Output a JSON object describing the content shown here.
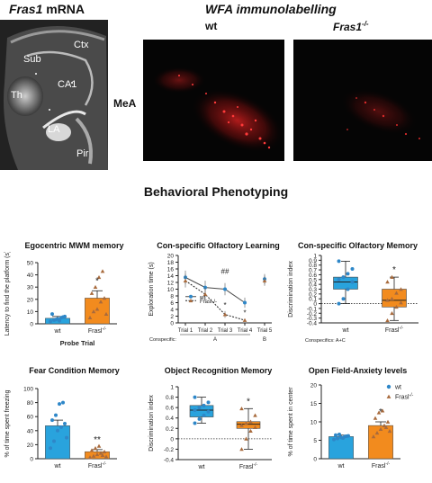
{
  "figure": {
    "panel_a": {
      "gene": "Fras1",
      "suffix": " mRNA",
      "labels": [
        "Ctx",
        "Sub",
        "CA1",
        "Th",
        "LA",
        "Pir"
      ]
    },
    "panel_b": {
      "title": "WFA immunolabelling",
      "col_wt": "wt",
      "col_ko_gene": "Fras1",
      "col_ko_sup": "-/-",
      "row_label": "MeA"
    },
    "section_title": "Behavioral Phenotyping",
    "colors": {
      "wt": "#29a3dd",
      "ko": "#f28b1e",
      "wt_marker": "#2e87c8",
      "ko_marker": "#a86a3c"
    }
  },
  "chart_data": [
    {
      "id": "mwm",
      "type": "bar",
      "title": "Egocentric MWM memory",
      "ylabel": "Latency to find the platform (s)",
      "xlabel": "Probe Trial",
      "ylim": [
        0,
        50
      ],
      "yticks": [
        0,
        10,
        20,
        30,
        40,
        50
      ],
      "categories": [
        "wt",
        "Frasl-/-"
      ],
      "values": [
        4.5,
        21
      ],
      "errors": [
        1.5,
        6
      ],
      "significance": [
        "",
        "*"
      ],
      "points": [
        [
          2,
          3,
          4,
          5,
          6,
          8,
          3.5,
          2.5,
          5.5
        ],
        [
          5,
          10,
          12,
          18,
          21,
          25,
          30,
          38,
          43,
          8
        ]
      ]
    },
    {
      "id": "olf_learning",
      "type": "line",
      "title": "Con-specific Olfactory Learning",
      "ylabel": "Exploration time (s)",
      "ylim": [
        0,
        20
      ],
      "yticks": [
        0,
        2,
        4,
        6,
        8,
        10,
        12,
        14,
        16,
        18,
        20
      ],
      "x": [
        "Trial 1",
        "Trial 2",
        "Trial 3",
        "Trial 4",
        "Trial 5"
      ],
      "x_group_prefix": "Conspecific:",
      "x_groups": [
        "A",
        "B"
      ],
      "legend": [
        "wt",
        "Frasl-/-"
      ],
      "series": [
        {
          "name": "wt",
          "values": [
            13.5,
            10.5,
            10,
            6,
            13
          ],
          "errors": [
            2,
            2,
            1.8,
            1.5,
            1.5
          ]
        },
        {
          "name": "Frasl-/-",
          "values": [
            12.5,
            8.5,
            2.5,
            0.8,
            12.5
          ],
          "errors": [
            2,
            2,
            1,
            0.5,
            1.5
          ]
        }
      ],
      "annotations": [
        {
          "x": "Trial 3",
          "y": 14.5,
          "text": "##"
        },
        {
          "x": "Trial 3",
          "y": 4.6,
          "text": "*"
        },
        {
          "x": "Trial 4",
          "y": 2.3,
          "text": "*"
        }
      ]
    },
    {
      "id": "olf_memory",
      "type": "box",
      "title": "Con-specific Olfactory Memory",
      "ylabel": "Discrimination index",
      "ylim": [
        -0.4,
        1.0
      ],
      "yticks": [
        -0.4,
        -0.3,
        -0.2,
        -0.1,
        0.0,
        0.1,
        0.2,
        0.3,
        0.4,
        0.5,
        0.6,
        0.7,
        0.8,
        0.9,
        1.0
      ],
      "categories": [
        "wt",
        "Frasl-/-"
      ],
      "footnote": "Conspecifics: A+C",
      "boxes": [
        {
          "min": 0.0,
          "q1": 0.3,
          "median": 0.45,
          "q3": 0.55,
          "max": 0.88
        },
        {
          "min": -0.35,
          "q1": -0.07,
          "median": 0.07,
          "q3": 0.3,
          "max": 0.55
        }
      ],
      "significance": [
        "",
        "*"
      ],
      "points": [
        [
          0.0,
          0.1,
          0.3,
          0.45,
          0.5,
          0.55,
          0.62,
          0.72,
          0.88
        ],
        [
          -0.35,
          -0.2,
          -0.07,
          0.02,
          0.07,
          0.1,
          0.22,
          0.3,
          0.45,
          0.55
        ]
      ]
    },
    {
      "id": "fear",
      "type": "bar",
      "title": "Fear Condition Memory",
      "ylabel": "% of time spent freezing",
      "ylim": [
        0,
        100
      ],
      "yticks": [
        0,
        20,
        40,
        60,
        80,
        100
      ],
      "categories": [
        "wt",
        "Frasl-/-"
      ],
      "values": [
        47,
        10
      ],
      "errors": [
        8,
        3
      ],
      "significance": [
        "",
        "**"
      ],
      "points": [
        [
          15,
          25,
          40,
          45,
          50,
          55,
          62,
          78,
          80,
          30
        ],
        [
          2,
          4,
          6,
          8,
          10,
          12,
          15,
          18,
          5,
          3
        ]
      ]
    },
    {
      "id": "object",
      "type": "box",
      "title": "Object Recognition Memory",
      "ylabel": "Discrimination index",
      "ylim": [
        -0.4,
        1.0
      ],
      "yticks": [
        -0.4,
        -0.2,
        0.0,
        0.2,
        0.4,
        0.6,
        0.8,
        1.0
      ],
      "categories": [
        "wt",
        "Frasl-/-"
      ],
      "boxes": [
        {
          "min": 0.3,
          "q1": 0.42,
          "median": 0.55,
          "q3": 0.64,
          "max": 0.8
        },
        {
          "min": -0.2,
          "q1": 0.2,
          "median": 0.28,
          "q3": 0.33,
          "max": 0.58
        }
      ],
      "significance": [
        "",
        "*"
      ],
      "points": [
        [
          0.3,
          0.38,
          0.45,
          0.52,
          0.55,
          0.6,
          0.64,
          0.7,
          0.8
        ],
        [
          -0.2,
          0.0,
          0.15,
          0.22,
          0.26,
          0.3,
          0.33,
          0.45,
          0.58
        ]
      ]
    },
    {
      "id": "openfield",
      "type": "bar",
      "title": "Open Field-Anxiety levels",
      "ylabel": "% of time spent in center",
      "ylim": [
        0,
        20
      ],
      "yticks": [
        0,
        5,
        10,
        15,
        20
      ],
      "categories": [
        "wt",
        "Frasl-/-"
      ],
      "legend": [
        "wt",
        "Frasl-/-"
      ],
      "values": [
        6,
        9
      ],
      "errors": [
        0.4,
        1
      ],
      "significance": [
        "",
        "*"
      ],
      "points": [
        [
          5.2,
          5.5,
          5.8,
          6,
          6.2,
          6.4,
          6.6,
          5.6,
          6.1
        ],
        [
          6,
          7,
          8,
          9,
          10,
          11,
          12.5,
          13,
          8.5,
          7.5
        ]
      ]
    }
  ]
}
